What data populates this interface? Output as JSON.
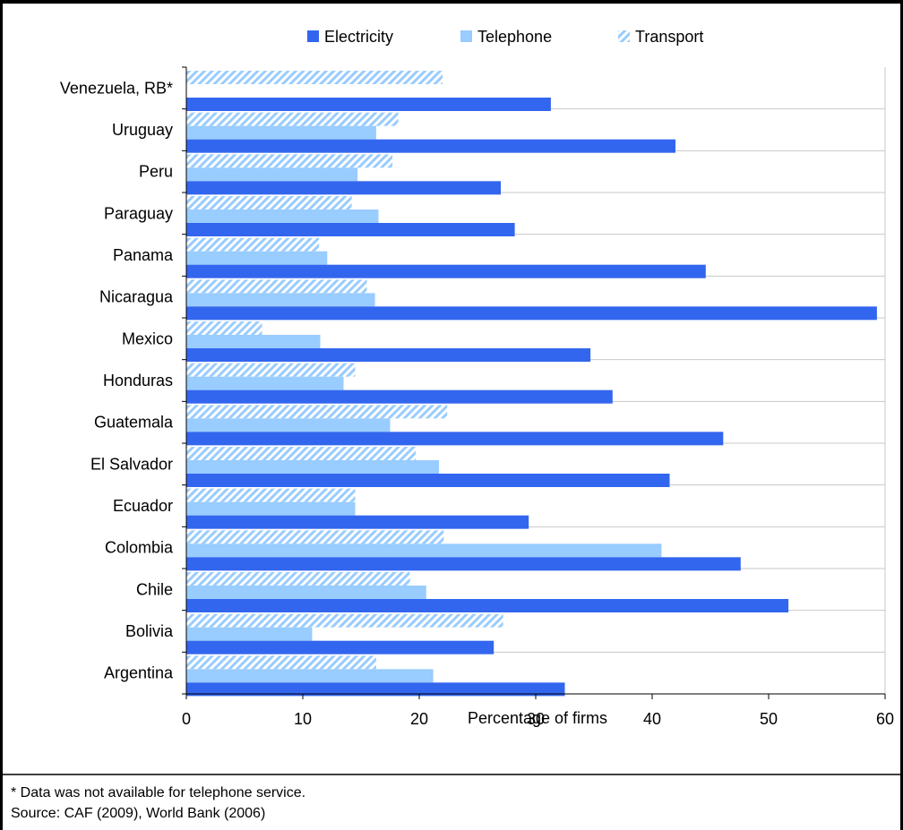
{
  "chart_data": {
    "type": "bar",
    "orientation": "horizontal",
    "title": "",
    "xlabel": "Percentage of firms",
    "ylabel": "",
    "xlim": [
      0,
      60
    ],
    "x_ticks": [
      0,
      10,
      20,
      30,
      40,
      50,
      60
    ],
    "grid": "horizontal lines between categories",
    "legend_position": "top-center",
    "categories": [
      "Venezuela, RB*",
      "Uruguay",
      "Peru",
      "Paraguay",
      "Panama",
      "Nicaragua",
      "Mexico",
      "Honduras",
      "Guatemala",
      "El Salvador",
      "Ecuador",
      "Colombia",
      "Chile",
      "Bolivia",
      "Argentina"
    ],
    "series": [
      {
        "name": "Electricity",
        "color": "#3366ee",
        "pattern": "solid",
        "values": [
          31.3,
          42.0,
          27.0,
          28.2,
          44.6,
          59.3,
          34.7,
          36.6,
          46.1,
          41.5,
          29.4,
          47.6,
          51.7,
          26.4,
          32.5
        ]
      },
      {
        "name": "Telephone",
        "color": "#99ccff",
        "pattern": "solid",
        "values": [
          null,
          16.3,
          14.7,
          16.5,
          12.1,
          16.2,
          11.5,
          13.5,
          17.5,
          21.7,
          14.5,
          40.8,
          20.6,
          10.8,
          21.2
        ]
      },
      {
        "name": "Transport",
        "color": "#99ccff",
        "pattern": "hatched",
        "values": [
          22.0,
          18.2,
          17.7,
          14.2,
          11.4,
          15.5,
          6.5,
          14.5,
          22.4,
          19.7,
          14.5,
          22.1,
          19.2,
          27.2,
          16.3
        ]
      }
    ]
  },
  "notes": {
    "footnote": "* Data was not available for telephone service.",
    "source": "Source: CAF (2009),  World Bank (2006)"
  }
}
